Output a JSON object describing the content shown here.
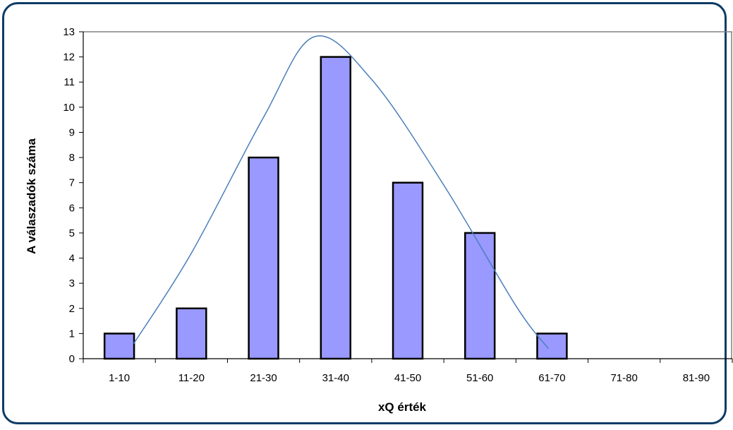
{
  "chart_data": {
    "type": "bar",
    "categories": [
      "1-10",
      "11-20",
      "21-30",
      "31-40",
      "41-50",
      "51-60",
      "61-70",
      "71-80",
      "81-90"
    ],
    "values": [
      1,
      2,
      8,
      12,
      7,
      5,
      1,
      0,
      0
    ],
    "xlabel": "xQ érték",
    "ylabel": "A válaszadók száma",
    "ylim": [
      0,
      13
    ],
    "yticks": [
      0,
      1,
      2,
      3,
      4,
      5,
      6,
      7,
      8,
      9,
      10,
      11,
      12,
      13
    ],
    "grid": false,
    "legend": "none",
    "overlay_curve": {
      "type": "line",
      "shape": "fitted normal curve",
      "points": [
        {
          "x": 0.7,
          "y": 0.6
        },
        {
          "x": 1.5,
          "y": 4.2
        },
        {
          "x": 2.5,
          "y": 9.6
        },
        {
          "x": 3.2,
          "y": 12.8
        },
        {
          "x": 4.0,
          "y": 11.1
        },
        {
          "x": 5.0,
          "y": 6.9
        },
        {
          "x": 6.0,
          "y": 2.1
        },
        {
          "x": 6.45,
          "y": 0.4
        }
      ]
    },
    "colors": {
      "bar_fill": "#9999ff",
      "bar_stroke": "#000000",
      "curve": "#4a7ebb",
      "frame": "#0d3b66",
      "plot_border": "#808080"
    }
  }
}
